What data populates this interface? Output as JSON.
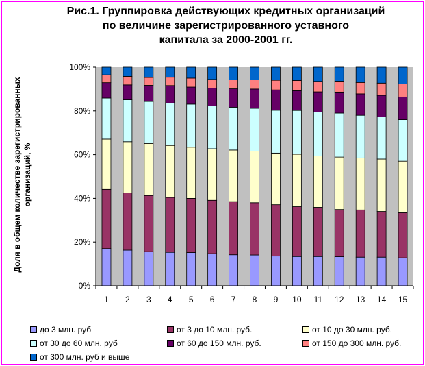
{
  "title_lines": [
    "Рис.1. Группировка действующих кредитных организаций",
    "по величине зарегистрированного уставного",
    "капитала за 2000-2001 гг."
  ],
  "ylabel_lines": [
    "Доля в общем количестве зарегистрированных",
    "организаций, %"
  ],
  "chart_data": {
    "type": "bar",
    "stacked": "percent",
    "title": "Рис.1. Группировка действующих кредитных организаций по величине зарегистрированного уставного капитала за 2000-2001 гг.",
    "xlabel": "",
    "ylabel": "Доля в общем количестве зарегистрированных организаций, %",
    "ylim": [
      0,
      100
    ],
    "yticks": [
      "0%",
      "20%",
      "40%",
      "60%",
      "80%",
      "100%"
    ],
    "grid": false,
    "legend_position": "bottom",
    "plot_background": "#c0c0c0",
    "categories": [
      "1",
      "2",
      "3",
      "4",
      "5",
      "6",
      "7",
      "8",
      "9",
      "10",
      "11",
      "12",
      "13",
      "14",
      "15"
    ],
    "series": [
      {
        "name": "до 3 млн. руб",
        "color": "#9999ff",
        "values": [
          17,
          16.3,
          15.6,
          15.3,
          15.2,
          14.7,
          14.2,
          14.1,
          13.6,
          13.4,
          13.4,
          13.3,
          13.1,
          13.1,
          12.8
        ]
      },
      {
        "name": "от 3 до 10 млн. руб.",
        "color": "#993366",
        "values": [
          27.1,
          26.2,
          25.7,
          25.1,
          24.8,
          24.4,
          24.3,
          23.9,
          23.5,
          22.8,
          22.5,
          21.6,
          21.6,
          20.9,
          20.6
        ]
      },
      {
        "name": "от 10 до 30 млн. руб.",
        "color": "#ffffcc",
        "values": [
          23,
          23.4,
          23.8,
          23.8,
          23.4,
          23.6,
          23.6,
          23.6,
          23.6,
          24,
          23.5,
          24,
          23.8,
          24,
          23.6
        ]
      },
      {
        "name": "от 30 до 60 млн. руб",
        "color": "#ccffff",
        "values": [
          18.8,
          19.2,
          19.2,
          19.4,
          19.7,
          19.6,
          19.6,
          19.6,
          19.6,
          20,
          20.1,
          20.1,
          19.5,
          19.3,
          19
        ]
      },
      {
        "name": "от 60 до 150 млн. руб.",
        "color": "#660066",
        "values": [
          7,
          6.8,
          7.4,
          8,
          7.8,
          8.1,
          8.4,
          8.8,
          9.3,
          9,
          9.2,
          9.6,
          9.8,
          9.8,
          10.4
        ]
      },
      {
        "name": "от 150 до 300 млн. руб.",
        "color": "#ff8080",
        "values": [
          3.6,
          3.9,
          3.6,
          3.8,
          4.1,
          4,
          4.1,
          4.2,
          4.4,
          4.7,
          4.8,
          5,
          5.2,
          5.6,
          5.9
        ]
      },
      {
        "name": "от 300 млн. руб и выше",
        "color": "#0066cc",
        "values": [
          3.5,
          4.2,
          4.7,
          4.6,
          5,
          5.6,
          5.8,
          5.8,
          6,
          6.1,
          6.5,
          6.4,
          7,
          7.3,
          7.7
        ]
      }
    ]
  }
}
